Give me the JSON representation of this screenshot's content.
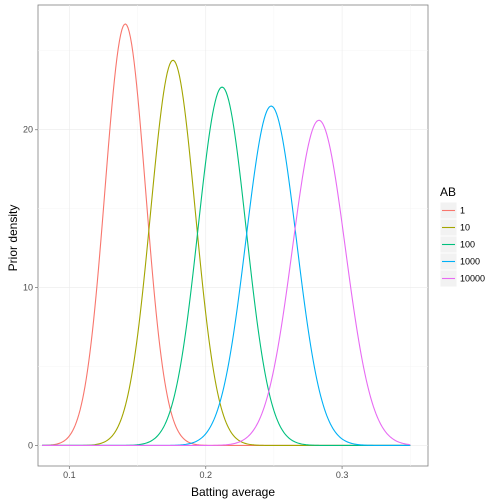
{
  "chart_data": {
    "type": "line",
    "title": "",
    "xlabel": "Batting average",
    "ylabel": "Prior density",
    "xlim": [
      0.077,
      0.363
    ],
    "ylim": [
      -1.3,
      27.9
    ],
    "x_ticks": [
      0.1,
      0.2,
      0.3
    ],
    "x_tick_labels": [
      "0.1",
      "0.2",
      "0.3"
    ],
    "y_ticks": [
      0,
      10,
      20
    ],
    "y_tick_labels": [
      "0",
      "10",
      "20"
    ],
    "x_range_plotted": [
      0.08,
      0.35
    ],
    "grid": true,
    "legend": {
      "title": "AB",
      "position": "right"
    },
    "series": [
      {
        "name": "1",
        "color": "#F8766D",
        "peak_x": 0.141,
        "peak_y": 26.7,
        "sd": 0.0149
      },
      {
        "name": "10",
        "color": "#A3A500",
        "peak_x": 0.176,
        "peak_y": 24.4,
        "sd": 0.0164
      },
      {
        "name": "100",
        "color": "#00BF7D",
        "peak_x": 0.212,
        "peak_y": 22.7,
        "sd": 0.0176
      },
      {
        "name": "1000",
        "color": "#00B0F6",
        "peak_x": 0.248,
        "peak_y": 21.5,
        "sd": 0.0185
      },
      {
        "name": "10000",
        "color": "#E76BF3",
        "peak_x": 0.283,
        "peak_y": 20.6,
        "sd": 0.0194
      }
    ]
  }
}
